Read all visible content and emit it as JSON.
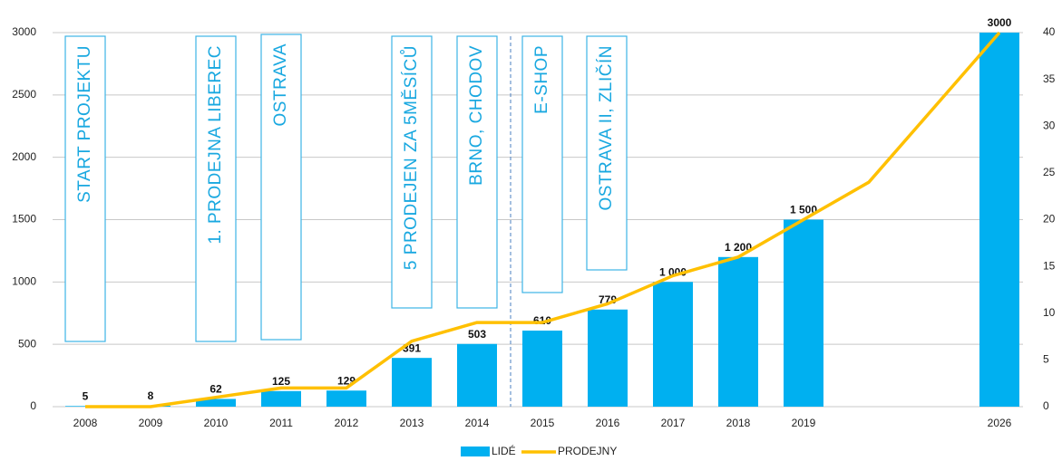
{
  "chart_data": {
    "type": "bar_line",
    "categories": [
      "2008",
      "2009",
      "2010",
      "2011",
      "2012",
      "2013",
      "2014",
      "2015",
      "2016",
      "2017",
      "2018",
      "2019",
      null,
      null,
      "2026"
    ],
    "series": [
      {
        "name": "LIDÉ",
        "type": "bar",
        "color": "#00b0f0",
        "axis": "y",
        "values": [
          5,
          8,
          62,
          125,
          129,
          391,
          503,
          610,
          779,
          1000,
          1200,
          1500,
          null,
          null,
          3000
        ],
        "value_labels": [
          "5",
          "8",
          "62",
          "125",
          "129",
          "391",
          "503",
          "610",
          "779",
          "1 000",
          "1 200",
          "1 500",
          null,
          null,
          "3000"
        ]
      },
      {
        "name": "PRODEJNY",
        "type": "line",
        "color": "#ffc000",
        "axis": "y2",
        "values": [
          0,
          0,
          1,
          2,
          2,
          7,
          9,
          9,
          11,
          14,
          16,
          20,
          24,
          32,
          40
        ]
      }
    ],
    "ylim": [
      0,
      3000
    ],
    "yticks": [
      0,
      500,
      1000,
      1500,
      2000,
      2500,
      3000
    ],
    "y2lim": [
      0,
      40
    ],
    "y2ticks": [
      0,
      5,
      10,
      15,
      20,
      25,
      30,
      35,
      40
    ],
    "grid": true,
    "legend": "bottom",
    "annotations": [
      "START PROJEKTU",
      "1. PRODEJNA LIBEREC",
      "OSTRAVA",
      "5 PRODEJEN ZA 5MĚSÍCŮ",
      "BRNO, CHODOV",
      "E-SHOP",
      "OSTRAVA II, ZLIČÍN"
    ]
  }
}
